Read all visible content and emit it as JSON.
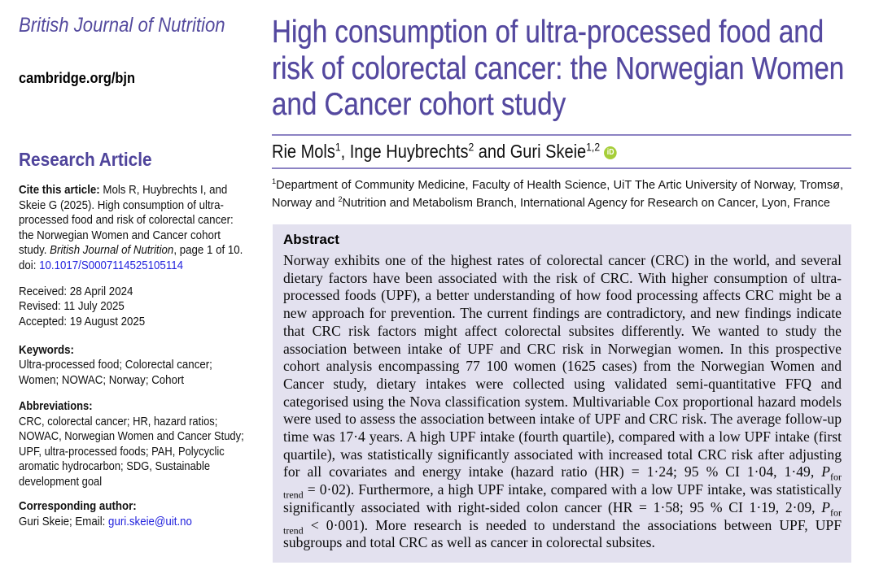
{
  "colors": {
    "accent_purple": "#4c4197",
    "divider_purple": "#8c83c3",
    "abstract_bg": "#e3e1ef",
    "link_blue": "#2222dd",
    "orcid_green": "#a6ce39"
  },
  "journal": {
    "name": "British Journal of Nutrition",
    "site": "cambridge.org/bjn"
  },
  "sidebar": {
    "section_label": "Research Article",
    "cite": {
      "label": "Cite this article:",
      "parts": [
        {
          "t": " Mols R, Huybrechts I, and Skeie G (2025). High consumption of ultra-processed food and risk of colorectal cancer: the Norwegian Women and Cancer cohort study. "
        },
        {
          "t": "British Journal of Nutrition",
          "i": true
        },
        {
          "t": ", page 1 of 10. doi: "
        },
        {
          "t": "10.1017/S0007114525105114",
          "link": true
        }
      ]
    },
    "dates": {
      "received": "Received: 28 April 2024",
      "revised": "Revised: 11 July 2025",
      "accepted": "Accepted: 19 August 2025"
    },
    "keywords": {
      "label": "Keywords:",
      "text": "Ultra-processed food; Colorectal cancer; Women; NOWAC; Norway; Cohort"
    },
    "abbreviations": {
      "label": "Abbreviations:",
      "text": "CRC, colorectal cancer; HR, hazard ratios; NOWAC, Norwegian Women and Cancer Study; UPF, ultra-processed foods; PAH, Polycyclic aromatic hydrocarbon; SDG, Sustainable development goal"
    },
    "corresponding": {
      "label": "Corresponding author:",
      "parts": [
        {
          "t": "Guri Skeie; Email: "
        },
        {
          "t": "guri.skeie@uit.no",
          "link": true
        }
      ]
    }
  },
  "article": {
    "title": "High consumption of ultra-processed food and risk of colorectal cancer: the Norwegian Women and Cancer cohort study",
    "authors_parts": [
      {
        "t": "Rie Mols"
      },
      {
        "t": "1",
        "sup": true
      },
      {
        "t": ", Inge Huybrechts"
      },
      {
        "t": "2",
        "sup": true
      },
      {
        "t": " and Guri Skeie"
      },
      {
        "t": "1,2",
        "sup": true
      }
    ],
    "orcid_label": "iD",
    "affiliations_parts": [
      {
        "t": "1",
        "sup": true
      },
      {
        "t": "Department of Community Medicine, Faculty of Health Science, UiT The Artic University of Norway, Tromsø, Norway and "
      },
      {
        "t": "2",
        "sup": true
      },
      {
        "t": "Nutrition and Metabolism Branch, International Agency for Research on Cancer, Lyon, France"
      }
    ],
    "abstract": {
      "heading": "Abstract",
      "parts": [
        {
          "t": "Norway exhibits one of the highest rates of colorectal cancer (CRC) in the world, and several dietary factors have been associated with the risk of CRC. With higher consumption of ultra-processed foods (UPF), a better understanding of how food processing affects CRC might be a new approach for prevention. The current findings are contradictory, and new findings indicate that CRC risk factors might affect colorectal subsites differently. We wanted to study the association between intake of UPF and CRC risk in Norwegian women. In this prospective cohort analysis encompassing 77 100 women (1625 cases) from the Norwegian Women and Cancer study, dietary intakes were collected using validated semi-quantitative FFQ and categorised using the Nova classification system. Multivariable Cox proportional hazard models were used to assess the association between intake of UPF and CRC risk. The average follow-up time was 17·4 years. A high UPF intake (fourth quartile), compared with a low UPF intake (first quartile), was statistically significantly associated with increased total CRC risk after adjusting for all covariates and energy intake (hazard ratio (HR) = 1·24; 95 % CI 1·04, 1·49, "
        },
        {
          "t": "P",
          "i": true
        },
        {
          "t": "for trend",
          "sub": true
        },
        {
          "t": " = 0·02). Furthermore, a high UPF intake, compared with a low UPF intake, was statistically significantly associated with right-sided colon cancer (HR = 1·58; 95 % CI 1·19, 2·09, "
        },
        {
          "t": "P",
          "i": true
        },
        {
          "t": "for trend",
          "sub": true
        },
        {
          "t": " < 0·001). More research is needed to understand the associations between UPF, UPF subgroups and total CRC as well as cancer in colorectal subsites."
        }
      ]
    }
  }
}
